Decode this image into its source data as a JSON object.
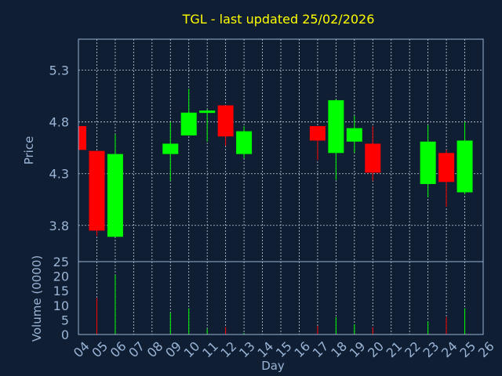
{
  "chart_data": [
    {
      "type": "candlestick",
      "title": "TGL - last updated 25/02/2026",
      "ylabel": "Price",
      "ylim": [
        3.45,
        5.6
      ],
      "yticks": [
        "3.8",
        "4.3",
        "4.8",
        "5.3"
      ],
      "colors": {
        "up": "#00ff00",
        "down": "#ff0000",
        "grid": "#c8d2e0",
        "axis_text": "#9ab4d6",
        "title": "#ffff00",
        "background": "#0f1e32"
      },
      "candles": [
        {
          "day": 4,
          "open": 4.76,
          "high": 4.76,
          "low": 4.53,
          "close": 4.53
        },
        {
          "day": 5,
          "open": 4.52,
          "high": 4.52,
          "low": 3.7,
          "close": 3.75
        },
        {
          "day": 6,
          "open": 3.69,
          "high": 4.68,
          "low": 3.69,
          "close": 4.49
        },
        {
          "day": 9,
          "open": 4.49,
          "high": 4.8,
          "low": 4.23,
          "close": 4.59
        },
        {
          "day": 10,
          "open": 4.67,
          "high": 5.12,
          "low": 4.67,
          "close": 4.89
        },
        {
          "day": 11,
          "open": 4.89,
          "high": 4.92,
          "low": 4.61,
          "close": 4.91
        },
        {
          "day": 12,
          "open": 4.96,
          "high": 4.96,
          "low": 4.57,
          "close": 4.66
        },
        {
          "day": 13,
          "open": 4.49,
          "high": 4.76,
          "low": 4.45,
          "close": 4.71
        },
        {
          "day": 17,
          "open": 4.76,
          "high": 4.76,
          "low": 4.43,
          "close": 4.62
        },
        {
          "day": 18,
          "open": 4.5,
          "high": 5.02,
          "low": 4.24,
          "close": 5.01
        },
        {
          "day": 19,
          "open": 4.61,
          "high": 4.86,
          "low": 4.5,
          "close": 4.74
        },
        {
          "day": 20,
          "open": 4.59,
          "high": 4.76,
          "low": 4.23,
          "close": 4.31
        },
        {
          "day": 23,
          "open": 4.2,
          "high": 4.77,
          "low": 4.07,
          "close": 4.61
        },
        {
          "day": 24,
          "open": 4.5,
          "high": 4.53,
          "low": 3.98,
          "close": 4.22
        },
        {
          "day": 25,
          "open": 4.12,
          "high": 4.8,
          "low": 4.1,
          "close": 4.62
        }
      ]
    },
    {
      "type": "bar",
      "ylabel": "Volume (0000)",
      "xlabel": "Day",
      "ylim": [
        0,
        25
      ],
      "yticks": [
        "0",
        "5",
        "10",
        "15",
        "20",
        "25"
      ],
      "x_ticks": [
        "04",
        "05",
        "06",
        "07",
        "08",
        "09",
        "10",
        "11",
        "12",
        "13",
        "14",
        "15",
        "16",
        "17",
        "18",
        "19",
        "20",
        "21",
        "22",
        "23",
        "24",
        "25",
        "26"
      ],
      "bars": [
        {
          "day": 4,
          "value": 0,
          "dir": "down"
        },
        {
          "day": 5,
          "value": 12.5,
          "dir": "down"
        },
        {
          "day": 6,
          "value": 20.5,
          "dir": "up"
        },
        {
          "day": 9,
          "value": 7.5,
          "dir": "up"
        },
        {
          "day": 10,
          "value": 9,
          "dir": "up"
        },
        {
          "day": 11,
          "value": 2,
          "dir": "up"
        },
        {
          "day": 12,
          "value": 2.5,
          "dir": "down"
        },
        {
          "day": 13,
          "value": 0.5,
          "dir": "up"
        },
        {
          "day": 17,
          "value": 3,
          "dir": "down"
        },
        {
          "day": 18,
          "value": 6,
          "dir": "up"
        },
        {
          "day": 19,
          "value": 3.5,
          "dir": "up"
        },
        {
          "day": 20,
          "value": 2.5,
          "dir": "down"
        },
        {
          "day": 23,
          "value": 4.5,
          "dir": "up"
        },
        {
          "day": 24,
          "value": 6,
          "dir": "down"
        },
        {
          "day": 25,
          "value": 9,
          "dir": "up"
        }
      ]
    }
  ]
}
